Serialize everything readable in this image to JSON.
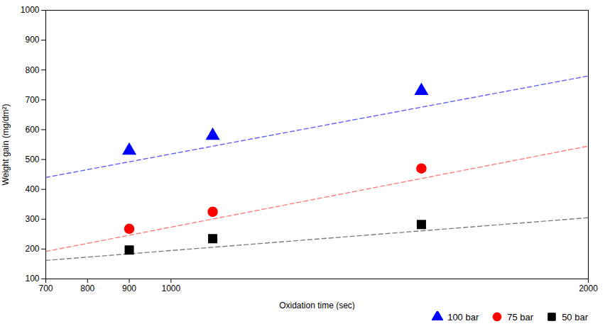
{
  "chart_data": {
    "type": "scatter",
    "xlabel": "Oxidation time (sec)",
    "ylabel": "Weight gain (mg/dm²)",
    "xlim": [
      700,
      2000
    ],
    "ylim": [
      100,
      1000
    ],
    "xticks": [
      700,
      800,
      900,
      1000,
      2000
    ],
    "yticks": [
      100,
      200,
      300,
      400,
      500,
      600,
      700,
      800,
      900,
      1000
    ],
    "grid": false,
    "legend": "lower right",
    "series": [
      {
        "name": "100 bar",
        "color": "#0000ff",
        "marker": "triangle",
        "x": [
          900,
          1100,
          1600
        ],
        "values": [
          530,
          580,
          730
        ],
        "trend_line": {
          "x": [
            700,
            2000
          ],
          "values": [
            440,
            780
          ],
          "color": "#4444ff",
          "line_style": "dashed"
        }
      },
      {
        "name": "75 bar",
        "color": "#ff0000",
        "marker": "circle",
        "x": [
          900,
          1100,
          1600
        ],
        "values": [
          268,
          325,
          470
        ],
        "trend_line": {
          "x": [
            700,
            2000
          ],
          "values": [
            192,
            545
          ],
          "color": "#ff6666",
          "line_style": "dashed"
        }
      },
      {
        "name": "50 bar",
        "color": "#000000",
        "marker": "square",
        "x": [
          900,
          1100,
          1600
        ],
        "values": [
          197,
          235,
          282
        ],
        "trend_line": {
          "x": [
            700,
            2000
          ],
          "values": [
            162,
            305
          ],
          "color": "#666666",
          "line_style": "dashed"
        }
      }
    ]
  }
}
